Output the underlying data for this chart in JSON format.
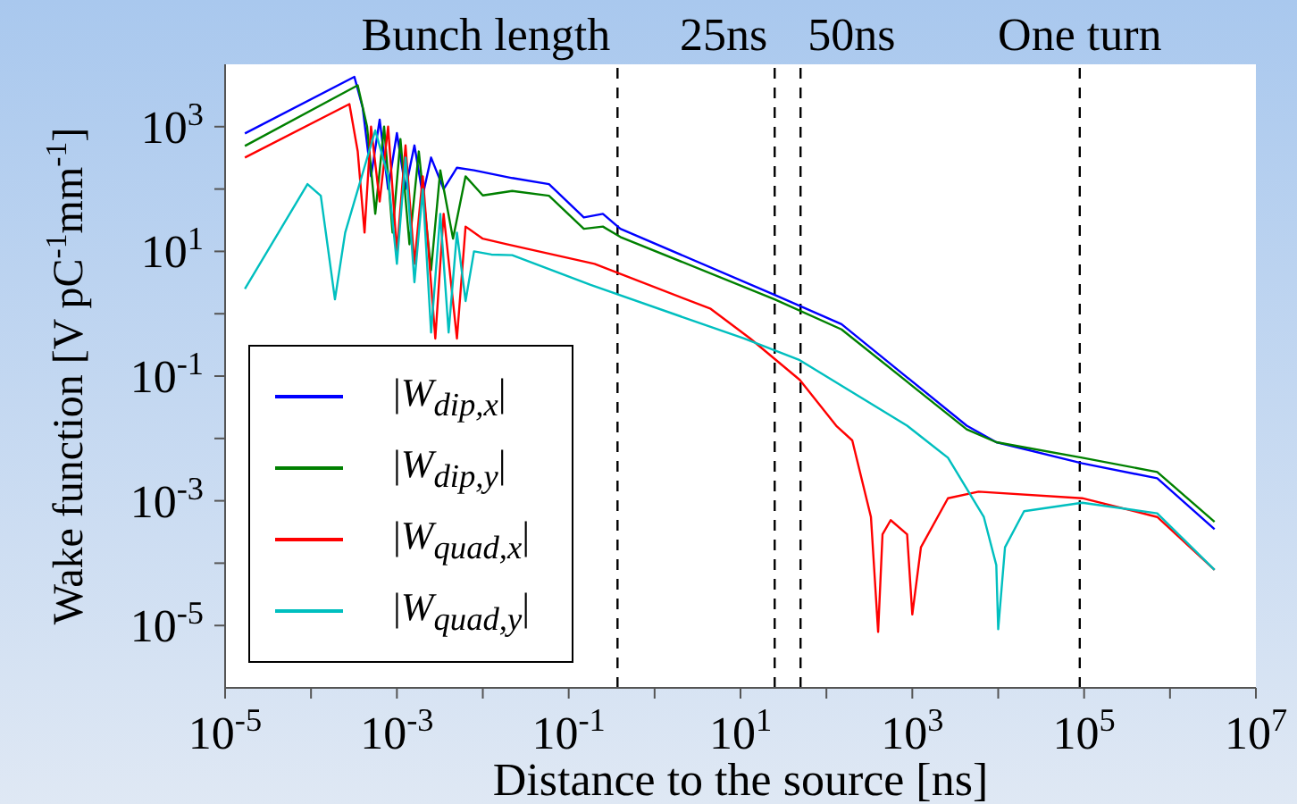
{
  "chart_data": {
    "type": "line",
    "xlabel": "Distance to the source [ns]",
    "ylabel": "Wake function [V pC$^{-1}$mm$^{-1}$]",
    "log": "xy",
    "grid": false,
    "legend": "bottom left",
    "marker": "none",
    "line_style": "solid",
    "xlim": [
      1e-05,
      10000000.0
    ],
    "ylim": [
      1e-06,
      10000.0
    ],
    "xticks": [
      {
        "value": 1e-05,
        "label": "10$^{-5}$"
      },
      {
        "value": 0.0001,
        "label": null
      },
      {
        "value": 0.001,
        "label": "10$^{-3}$"
      },
      {
        "value": 0.01,
        "label": null
      },
      {
        "value": 0.1,
        "label": "10$^{-1}$"
      },
      {
        "value": 1,
        "label": null
      },
      {
        "value": 10,
        "label": "10$^{1}$"
      },
      {
        "value": 100,
        "label": null
      },
      {
        "value": 1000,
        "label": "10$^{3}$"
      },
      {
        "value": 10000.0,
        "label": null
      },
      {
        "value": 100000.0,
        "label": "10$^{5}$"
      },
      {
        "value": 1000000.0,
        "label": null
      },
      {
        "value": 10000000.0,
        "label": "10$^{7}$"
      }
    ],
    "yticks": [
      {
        "value": 1e-05,
        "label": "10$^{-5}$"
      },
      {
        "value": 0.0001,
        "label": null
      },
      {
        "value": 0.001,
        "label": "10$^{-3}$"
      },
      {
        "value": 0.01,
        "label": null
      },
      {
        "value": 0.1,
        "label": "10$^{-1}$"
      },
      {
        "value": 1,
        "label": null
      },
      {
        "value": 10,
        "label": "10$^{1}$"
      },
      {
        "value": 100,
        "label": null
      },
      {
        "value": 1000,
        "label": "10$^{3}$"
      }
    ],
    "ref_lines": [
      {
        "axis": "x",
        "value": 0.37,
        "label": "Bunch length",
        "line_style": "dashed",
        "color": "#000000"
      },
      {
        "axis": "x",
        "value": 25,
        "label": "25ns",
        "line_style": "dashed",
        "color": "#000000"
      },
      {
        "axis": "x",
        "value": 50,
        "label": "50ns",
        "line_style": "dashed",
        "color": "#000000"
      },
      {
        "axis": "x",
        "value": 89000,
        "label": "One turn",
        "line_style": "dashed",
        "color": "#000000"
      }
    ],
    "series": [
      {
        "name": "|W$_{dip,x}$|",
        "color": "#0000ff",
        "x": [
          1.7e-05,
          0.00032,
          0.0004,
          0.0005,
          0.00063,
          0.00079,
          0.001,
          0.00126,
          0.0016,
          0.002,
          0.0025,
          0.0035,
          0.005,
          0.0079,
          0.022,
          0.059,
          0.15,
          0.25,
          0.4,
          25,
          150,
          4300,
          9500,
          95000,
          710000,
          3300000
        ],
        "values": [
          780,
          6300,
          2000,
          160,
          1300,
          100,
          790,
          100,
          500,
          79,
          320,
          100,
          220,
          200,
          150,
          120,
          35,
          40,
          23,
          2.0,
          0.68,
          0.016,
          0.0087,
          0.004,
          0.0023,
          0.00035
        ]
      },
      {
        "name": "|W$_{dip,y}$|",
        "color": "#008000",
        "x": [
          1.7e-05,
          0.00035,
          0.00045,
          0.00056,
          0.00071,
          0.00089,
          0.0011,
          0.0014,
          0.0018,
          0.0025,
          0.0032,
          0.0045,
          0.0063,
          0.01,
          0.022,
          0.059,
          0.15,
          0.25,
          0.4,
          25,
          150,
          4300,
          9500,
          95000,
          710000,
          3300000
        ],
        "values": [
          490,
          4600,
          1000,
          40,
          1000,
          20,
          630,
          13,
          400,
          5,
          200,
          16,
          160,
          79,
          93,
          78,
          23,
          25,
          17,
          1.7,
          0.56,
          0.014,
          0.0087,
          0.0049,
          0.0029,
          0.00046
        ]
      },
      {
        "name": "|W$_{quad,x}$|",
        "color": "#ff0000",
        "x": [
          1.7e-05,
          0.00028,
          0.00035,
          0.00042,
          0.0005,
          0.00063,
          0.00079,
          0.001,
          0.00126,
          0.0016,
          0.002,
          0.0028,
          0.0035,
          0.005,
          0.0063,
          0.01,
          0.019,
          0.2,
          4.5,
          13,
          49,
          130,
          200,
          330,
          400,
          450,
          560,
          870,
          1000,
          1260,
          2600,
          5900,
          95000,
          710000,
          3300000
        ],
        "values": [
          320,
          2300,
          400,
          20,
          1000,
          63,
          1000,
          10,
          500,
          6.3,
          160,
          0.4,
          40,
          0.4,
          25,
          16,
          13,
          6.3,
          1.2,
          0.4,
          0.087,
          0.016,
          0.0093,
          0.00055,
          7.9e-06,
          0.00029,
          0.00049,
          0.00029,
          1.5e-05,
          0.00018,
          0.0011,
          0.0014,
          0.0011,
          0.00055,
          7.8e-05
        ]
      },
      {
        "name": "|W$_{quad,y}$|",
        "color": "#00bfbf",
        "x": [
          1.7e-05,
          9.1e-05,
          0.00013,
          0.00019,
          0.00025,
          0.00056,
          0.00079,
          0.001,
          0.00126,
          0.0016,
          0.002,
          0.0025,
          0.0032,
          0.004,
          0.005,
          0.0063,
          0.0079,
          0.0126,
          0.022,
          0.18,
          11,
          49,
          870,
          2600,
          6800,
          9500,
          10000,
          12000,
          20000,
          95000,
          710000,
          3300000
        ],
        "values": [
          2.5,
          120,
          78,
          1.7,
          20,
          870,
          160,
          6.3,
          320,
          3.2,
          100,
          0.5,
          40,
          0.5,
          20,
          1.6,
          10,
          8.9,
          8.7,
          2.9,
          0.4,
          0.18,
          0.016,
          0.0049,
          0.00055,
          9.3e-05,
          8.7e-06,
          0.00018,
          0.00068,
          0.00093,
          0.00063,
          7.8e-05
        ]
      }
    ]
  }
}
